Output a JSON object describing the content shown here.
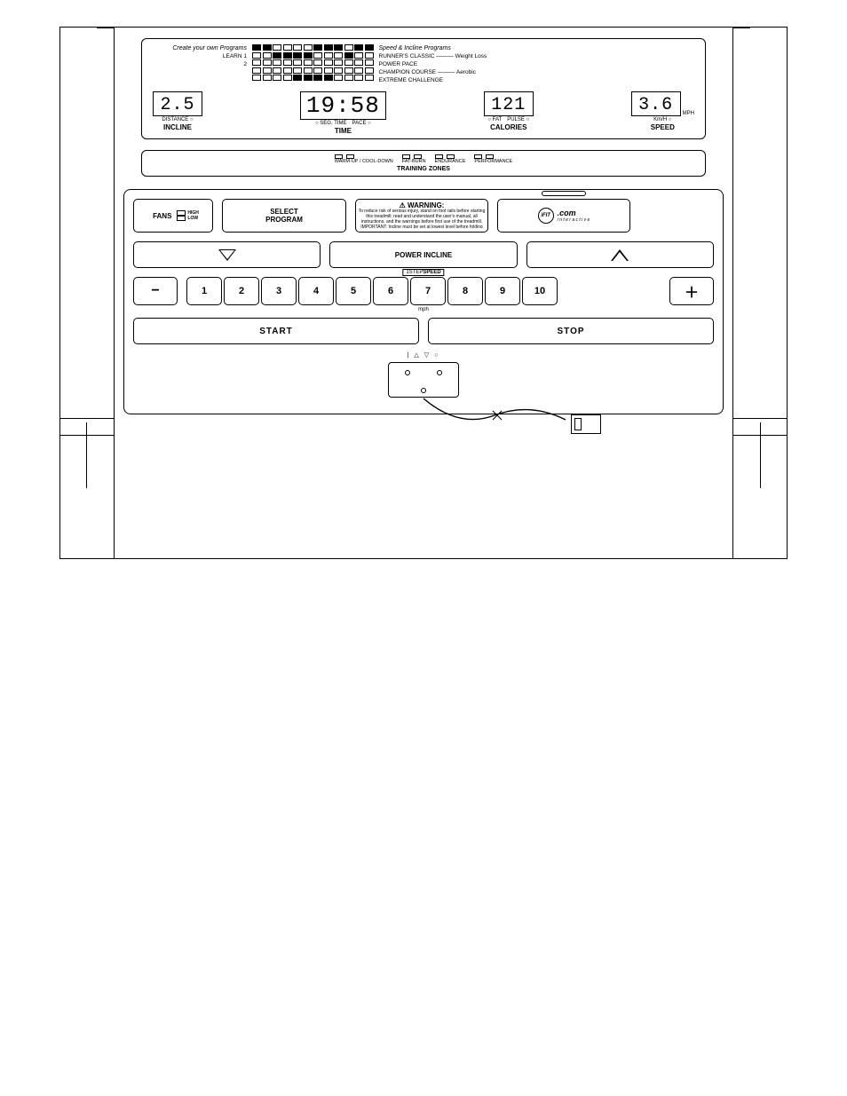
{
  "programs": {
    "left_header": "Create your own Programs",
    "left_lines": [
      "LEARN 1",
      "2"
    ],
    "right_header": "Speed & Incline Programs",
    "right_lines": [
      "RUNNER'S CLASSIC ——— Weight Loss",
      "POWER PACE",
      "CHAMPION COURSE ——— Aerobic",
      "EXTREME CHALLENGE"
    ],
    "matrix_cols": 12,
    "matrix_rows": 5,
    "filled": [
      [
        0,
        0
      ],
      [
        0,
        1
      ],
      [
        0,
        6
      ],
      [
        0,
        7
      ],
      [
        0,
        8
      ],
      [
        0,
        10
      ],
      [
        0,
        11
      ],
      [
        1,
        2
      ],
      [
        1,
        3
      ],
      [
        1,
        4
      ],
      [
        1,
        5
      ],
      [
        1,
        9
      ],
      [
        4,
        4
      ],
      [
        4,
        5
      ],
      [
        4,
        6
      ],
      [
        4,
        7
      ]
    ]
  },
  "displays": [
    {
      "value": "2.5",
      "sub": [
        "DISTANCE ○"
      ],
      "main": "INCLINE"
    },
    {
      "value": "19:58",
      "sub": [
        "○ SEG. TIME",
        "PACE ○"
      ],
      "main": "TIME"
    },
    {
      "value": "121",
      "sub": [
        "○ FAT",
        "PULSE ○"
      ],
      "main": "CALORIES"
    },
    {
      "value": "3.6",
      "sub": [
        "Km/H ○"
      ],
      "suffix": "MPH",
      "main": "SPEED"
    }
  ],
  "zones": {
    "groups": [
      {
        "label": "WARM-UP / COOL-DOWN",
        "leds": 2
      },
      {
        "label": "FAT-BURN",
        "leds": 2
      },
      {
        "label": "ENDURANCE",
        "leds": 2
      },
      {
        "label": "PERFORMANCE",
        "leds": 2
      }
    ],
    "title": "TRAINING ZONES"
  },
  "controls": {
    "fans": {
      "label": "FANS",
      "opts": [
        "HIGH",
        "LOW"
      ]
    },
    "select": {
      "line1": "SELECT",
      "line2": "PROGRAM"
    },
    "warning": {
      "title": "⚠ WARNING:",
      "body": "To reduce risk of serious injury, stand on foot rails before starting this treadmill; read and understand the user's manual, all instructions, and the warnings before first use of the treadmill. IMPORTANT: Incline must be set at lowest level before folding treadmill into storage position."
    },
    "ifit": {
      "brand": "iFIT",
      "suffix": ".com",
      "sub": "i n t e r a c t i v e"
    },
    "incline_label": "POWER INCLINE",
    "speed": {
      "header_pre": "1",
      "header_mid": "STEP",
      "header_bold": "SPEED",
      "nums": [
        "1",
        "2",
        "3",
        "4",
        "5",
        "6",
        "7",
        "8",
        "9",
        "10"
      ],
      "unit": "mph"
    },
    "start": "START",
    "stop": "STOP",
    "key_legend": "| △    ▽ ○"
  }
}
